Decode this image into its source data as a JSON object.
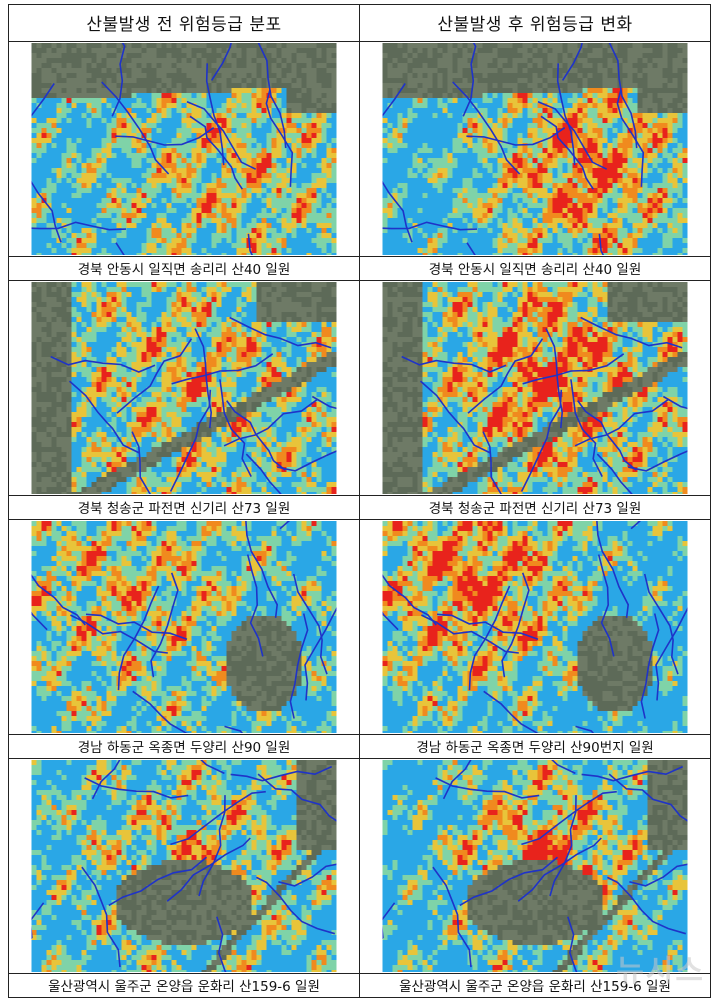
{
  "headers": {
    "before": "산불발생 전 위험등급 분포",
    "after": "산불발생 후 위험등급 변화"
  },
  "rows": [
    {
      "caption_before": "경북 안동시 일직면 송리리 산40 일원",
      "caption_after": "경북 안동시 일직면 송리리 산40 일원"
    },
    {
      "caption_before": "경북 청송군 파전면 신기리 산73 일원",
      "caption_after": "경북 청송군 파전면 신기리 산73 일원"
    },
    {
      "caption_before": "경남 하동군 옥종면 두양리 산90 일원",
      "caption_after": "경남 하동군 옥종면 두양리 산90번지 일원"
    },
    {
      "caption_before": "울산광역시 울주군 온양읍 운화리 산159-6 일원",
      "caption_after": "울산광역시 울주군 온양읍 운화리 산159-6 일원"
    }
  ],
  "watermark": "뉴시스",
  "colors": {
    "satellite": "#5f6b5a",
    "low": "#2aa7e6",
    "lowmid": "#7fd3a8",
    "mid": "#e8c43a",
    "high": "#f08a1e",
    "veryhigh": "#e8231c",
    "stream": "#1f33c8"
  }
}
